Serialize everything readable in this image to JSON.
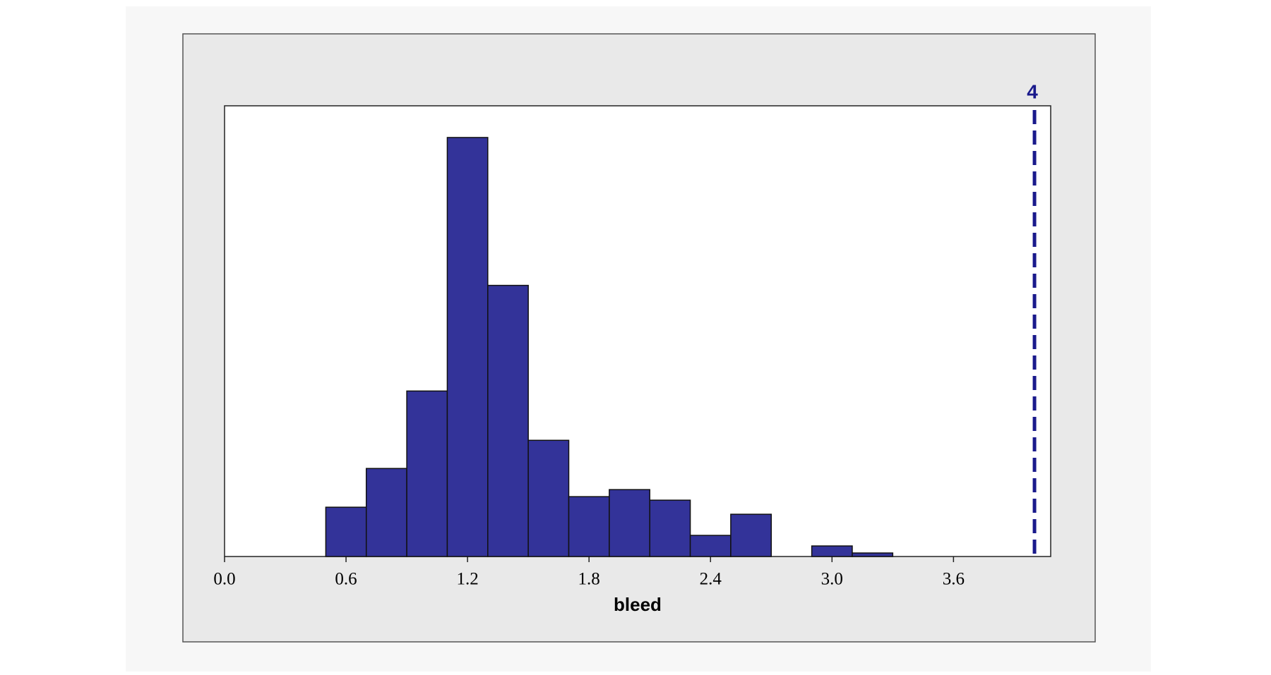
{
  "chart_data": {
    "type": "histogram",
    "x_label": "bleed",
    "bins": [
      0.5,
      0.7,
      0.9,
      1.1,
      1.3,
      1.5,
      1.7,
      1.9,
      2.1,
      2.3,
      2.5,
      2.7,
      2.9,
      3.1,
      3.3
    ],
    "values": [
      14,
      25,
      47,
      119,
      77,
      33,
      17,
      19,
      16,
      6,
      12,
      0,
      3,
      1
    ],
    "color": "#333399",
    "xlim": [
      0,
      4.08
    ],
    "xticks": [
      {
        "value": 0,
        "label": "0.0"
      },
      0.6,
      1.2,
      1.8,
      2.4,
      {
        "value": 3,
        "label": "3.0"
      },
      3.6
    ],
    "ylim": [
      0,
      128
    ],
    "reference_line": 4,
    "reference_color": "#1a1a8c"
  }
}
